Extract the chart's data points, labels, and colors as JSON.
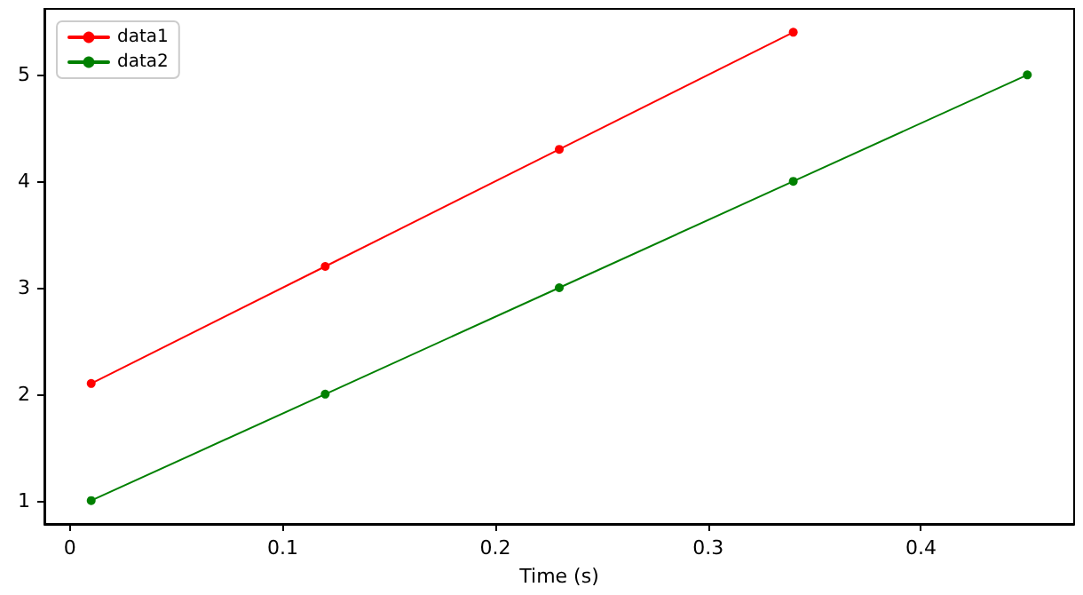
{
  "chart_data": {
    "type": "line",
    "xlabel": "Time (s)",
    "series": [
      {
        "name": "data1",
        "color": "#ff0000",
        "x": [
          0.01,
          0.12,
          0.23,
          0.34
        ],
        "values": [
          2.1,
          3.2,
          4.3,
          5.4
        ]
      },
      {
        "name": "data2",
        "color": "#008000",
        "x": [
          0.01,
          0.12,
          0.23,
          0.34,
          0.45
        ],
        "values": [
          1,
          2,
          3,
          4,
          5
        ]
      }
    ],
    "xlim": [
      -0.012,
      0.472
    ],
    "xticks": [
      0,
      0.1,
      0.2,
      0.3,
      0.4
    ],
    "ylim": [
      0.78,
      5.62
    ],
    "yticks": [
      1,
      2,
      3,
      4,
      5
    ],
    "grid": false,
    "legend": "top left",
    "marker": "circle",
    "line_style": "solid"
  }
}
